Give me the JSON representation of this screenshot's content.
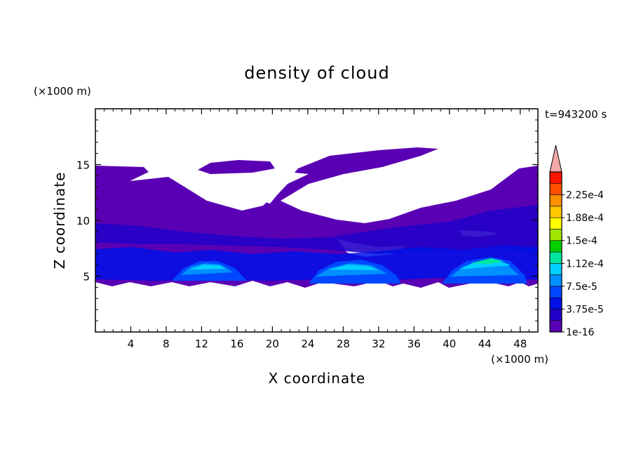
{
  "chart_data": {
    "type": "heatmap",
    "title": "density of cloud",
    "time_label": "t=943200 s",
    "xlabel": "X coordinate",
    "ylabel": "Z coordinate",
    "x_unit": "(×1000 m)",
    "y_unit": "(×1000 m)",
    "xlim": [
      0,
      50
    ],
    "ylim": [
      0,
      20
    ],
    "x_ticks": [
      4,
      8,
      12,
      16,
      20,
      24,
      28,
      32,
      36,
      40,
      44,
      48
    ],
    "y_ticks": [
      5,
      10,
      15
    ],
    "colorbar": {
      "levels": [
        1e-16,
        1.875e-05,
        3.75e-05,
        5.625e-05,
        7.5e-05,
        9.375e-05,
        0.0001125,
        0.00013125,
        0.00015,
        0.00016875,
        0.0001875,
        0.00020625,
        0.000225,
        0.00024375
      ],
      "labels": [
        "1e-16",
        "3.75e-5",
        "7.5e-5",
        "1.12e-4",
        "1.5e-4",
        "1.88e-4",
        "2.25e-4"
      ],
      "colors": [
        "#5a00b4",
        "#2200c8",
        "#0010e6",
        "#0048ff",
        "#0090ff",
        "#00d0ff",
        "#00e6a0",
        "#00d000",
        "#a0e600",
        "#ffff00",
        "#ffc800",
        "#ff9000",
        "#ff5000",
        "#ff1400"
      ],
      "extend_color": "#f4a8a8"
    },
    "series": [
      {
        "x_range": [
          0,
          50
        ],
        "z_range": [
          4.6,
          15.0
        ],
        "level": 1e-16
      },
      {
        "x_range": [
          0,
          50
        ],
        "z_range": [
          5.0,
          12.0
        ],
        "level": 3.75e-05
      },
      {
        "x_range": [
          9,
          17
        ],
        "z_range": [
          5.0,
          6.6
        ],
        "level": 0.000112
      },
      {
        "x_range": [
          24,
          33
        ],
        "z_range": [
          5.0,
          6.6
        ],
        "level": 9.375e-05
      },
      {
        "x_range": [
          39,
          48
        ],
        "z_range": [
          5.0,
          6.9
        ],
        "level": 0.00013125
      }
    ]
  }
}
